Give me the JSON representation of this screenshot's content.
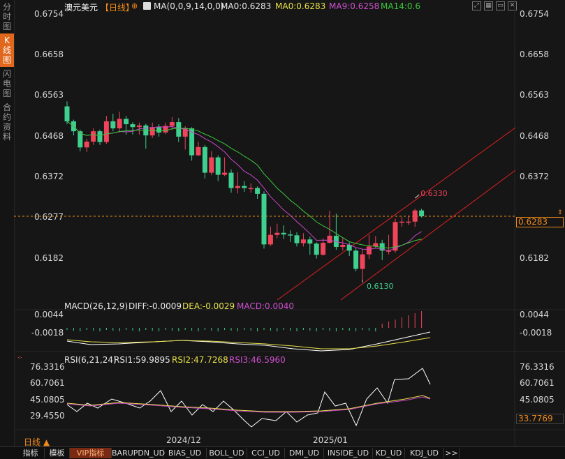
{
  "sidebar": [
    {
      "label": [
        "分",
        "时",
        "图"
      ],
      "active": false
    },
    {
      "label": [
        "K",
        "线",
        "图"
      ],
      "active": true
    },
    {
      "label": [
        "闪",
        "电",
        "图"
      ],
      "active": false
    },
    {
      "label": [
        "合",
        "约",
        "资",
        "料"
      ],
      "active": false
    }
  ],
  "header": {
    "symbol": "澳元美元",
    "period": "【日线】",
    "ma_label": "MA(0,0,9,14,0,0)",
    "ma0": "MA0:0.6283",
    "ma0b": "MA0:0.6283",
    "ma9": "MA9:0.6258",
    "ma14": "MA14:0.6"
  },
  "toolbar_icons": [
    "expand-icon",
    "grid-icon",
    "window-icon",
    "close-icon"
  ],
  "price_axis": {
    "left": [
      "0.6754",
      "0.6658",
      "0.6563",
      "0.6468",
      "0.6372",
      "0.6277",
      "0.6182"
    ],
    "right": [
      "0.6754",
      "0.6658",
      "0.6563",
      "0.6468",
      "0.6372",
      "0.6277",
      "0.6182"
    ],
    "current": "0.6283",
    "high_label": "0.6330",
    "low_label": "0.6130"
  },
  "macd": {
    "title": "MACD(26,12,9)",
    "diff": "DIFF:-0.0009",
    "dea": "DEA:-0.0029",
    "macd": "MACD:0.0040",
    "axis_left": [
      "0.0044",
      "-0.0018"
    ],
    "axis_right": [
      "0.0044",
      "-0.0018"
    ]
  },
  "rsi": {
    "title": "RSI(6,21,24)",
    "rsi1": "RSI1:59.9895",
    "rsi2": "RSI2:47.7268",
    "rsi3": "RSI3:46.5960",
    "axis_left": [
      "76.3316",
      "60.7061",
      "45.0805",
      "29.4550"
    ],
    "axis_right": [
      "76.3316",
      "60.7061",
      "45.0805"
    ],
    "current": "33.7769"
  },
  "dates": [
    "2024/12",
    "2025/01"
  ],
  "period_button": "日线",
  "bottom_tabs": [
    "指标",
    "模板",
    "VIP指标",
    "BARUPDN_UD",
    "BIAS_UD",
    "BOLL_UD",
    "CCI_UD",
    "DMI_UD",
    "INSIDE_UD",
    "KD_UD",
    "KDJ_UD",
    ">>"
  ],
  "colors": {
    "up": "#f0445a",
    "down": "#3fcf8e",
    "ma9": "#c848c8",
    "ma14": "#3cc83c",
    "dea": "#e8e048",
    "accent": "#f08a1a",
    "channel": "#e02020"
  },
  "chart_data": {
    "type": "candlestick",
    "ylim": [
      0.6113,
      0.6771
    ],
    "candles": [
      [
        0.6548,
        0.6512,
        0.656,
        0.6505
      ],
      [
        0.6512,
        0.6488,
        0.6516,
        0.6478
      ],
      [
        0.6488,
        0.6449,
        0.6492,
        0.644
      ],
      [
        0.6449,
        0.6463,
        0.647,
        0.6438
      ],
      [
        0.6463,
        0.6488,
        0.6495,
        0.6455
      ],
      [
        0.6488,
        0.6462,
        0.6492,
        0.6455
      ],
      [
        0.6462,
        0.6512,
        0.6525,
        0.6458
      ],
      [
        0.6512,
        0.6495,
        0.653,
        0.6488
      ],
      [
        0.6495,
        0.6518,
        0.6535,
        0.6485
      ],
      [
        0.6518,
        0.6505,
        0.6525,
        0.648
      ],
      [
        0.6505,
        0.6498,
        0.651,
        0.648
      ],
      [
        0.6498,
        0.6502,
        0.6509,
        0.648
      ],
      [
        0.6502,
        0.6478,
        0.6506,
        0.6446
      ],
      [
        0.6478,
        0.6498,
        0.6509,
        0.6472
      ],
      [
        0.6498,
        0.6485,
        0.6505,
        0.6475
      ],
      [
        0.6485,
        0.6501,
        0.6509,
        0.6481
      ],
      [
        0.6501,
        0.651,
        0.6522,
        0.6491
      ],
      [
        0.651,
        0.6475,
        0.652,
        0.6462
      ],
      [
        0.6475,
        0.6495,
        0.65,
        0.6444
      ],
      [
        0.6495,
        0.643,
        0.6498,
        0.6417
      ],
      [
        0.643,
        0.645,
        0.6463,
        0.6428
      ],
      [
        0.645,
        0.6388,
        0.6455,
        0.6374
      ],
      [
        0.6388,
        0.6425,
        0.644,
        0.6382
      ],
      [
        0.6425,
        0.6383,
        0.643,
        0.6368
      ],
      [
        0.6383,
        0.6388,
        0.6425,
        0.638
      ],
      [
        0.6388,
        0.6351,
        0.6396,
        0.634
      ],
      [
        0.6351,
        0.6356,
        0.639,
        0.6338
      ],
      [
        0.6356,
        0.6351,
        0.6368,
        0.6342
      ],
      [
        0.6351,
        0.6351,
        0.6362,
        0.634
      ],
      [
        0.6351,
        0.6337,
        0.6355,
        0.6325
      ],
      [
        0.6337,
        0.6215,
        0.6343,
        0.6205
      ],
      [
        0.6215,
        0.6238,
        0.6258,
        0.6211
      ],
      [
        0.6238,
        0.6243,
        0.6265,
        0.623
      ],
      [
        0.6243,
        0.6239,
        0.6261,
        0.6228
      ],
      [
        0.6239,
        0.6237,
        0.6249,
        0.6221
      ],
      [
        0.6237,
        0.6218,
        0.6244,
        0.621
      ],
      [
        0.6218,
        0.6227,
        0.6242,
        0.621
      ],
      [
        0.6227,
        0.6217,
        0.6234,
        0.619
      ],
      [
        0.6217,
        0.619,
        0.622,
        0.6181
      ],
      [
        0.619,
        0.6219,
        0.623,
        0.6188
      ],
      [
        0.6219,
        0.6236,
        0.6296,
        0.6217
      ],
      [
        0.6236,
        0.6209,
        0.6289,
        0.6202
      ],
      [
        0.6209,
        0.6214,
        0.623,
        0.62
      ],
      [
        0.6214,
        0.62,
        0.622,
        0.6187
      ],
      [
        0.62,
        0.6156,
        0.6206,
        0.615
      ],
      [
        0.6156,
        0.6191,
        0.6203,
        0.613
      ],
      [
        0.6191,
        0.621,
        0.6238,
        0.618
      ],
      [
        0.621,
        0.6218,
        0.6235,
        0.6205
      ],
      [
        0.6218,
        0.62,
        0.6226,
        0.6177
      ],
      [
        0.62,
        0.62,
        0.6238,
        0.6191
      ],
      [
        0.62,
        0.6269,
        0.6277,
        0.6195
      ],
      [
        0.6269,
        0.627,
        0.6281,
        0.6258
      ],
      [
        0.627,
        0.627,
        0.6285,
        0.6262
      ],
      [
        0.627,
        0.6297,
        0.6301,
        0.6257
      ],
      [
        0.6297,
        0.6283,
        0.6301,
        0.628
      ]
    ],
    "ma9_label": "MA9",
    "ma14_label": "MA14"
  }
}
